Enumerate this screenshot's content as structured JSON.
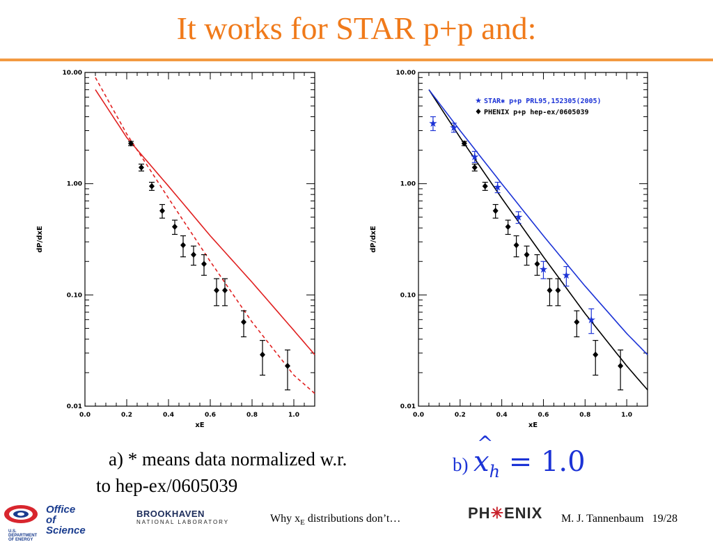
{
  "slide": {
    "title": "It works for STAR p+p and:",
    "caption_a_line1": "a) * means data normalized w.r.",
    "caption_a_line2": "to hep-ex/0605039",
    "caption_b_label": "b)",
    "caption_b_var": "x",
    "caption_b_sub": "h",
    "caption_b_eq": " = 1.0",
    "footer_center_prefix": "Why x",
    "footer_center_sub": "E",
    "footer_center_suffix": " distributions don’t…",
    "footer_author": "M. J. Tannenbaum",
    "footer_page": "19/28",
    "logo_doe_line1": "Office of",
    "logo_doe_line2": "Science",
    "logo_doe_sub": "U.S. DEPARTMENT OF ENERGY",
    "logo_bnl_top": "BROOKHAVEN",
    "logo_bnl_bottom": "NATIONAL LABORATORY",
    "logo_phenix_a": "PH",
    "logo_phenix_star": "✳",
    "logo_phenix_b": "ENIX"
  },
  "colors": {
    "title": "#f07a1a",
    "rule": "#f39a42",
    "red": "#e02020",
    "blue": "#1c33d6",
    "black": "#000000"
  },
  "chart_data": [
    {
      "type": "scatter",
      "xlabel": "x_E",
      "ylabel": "dP/dx_E",
      "xlim": [
        0.0,
        1.1
      ],
      "ylim": [
        0.01,
        10.0
      ],
      "ylog": true,
      "x_ticks": [
        "0.0",
        "0.2",
        "0.4",
        "0.6",
        "0.8",
        "1.0"
      ],
      "y_ticks": [
        "0.01",
        "0.10",
        "1.00",
        "10.00"
      ],
      "series": [
        {
          "marker": "diamond",
          "color": "#000000",
          "x": [
            0.22,
            0.27,
            0.32,
            0.37,
            0.43,
            0.47,
            0.52,
            0.57,
            0.63,
            0.67,
            0.76,
            0.85,
            0.97
          ],
          "y": [
            2.3,
            1.4,
            0.95,
            0.57,
            0.41,
            0.28,
            0.23,
            0.19,
            0.11,
            0.11,
            0.057,
            0.029,
            0.023
          ],
          "err": [
            0.1,
            0.1,
            0.08,
            0.08,
            0.06,
            0.06,
            0.045,
            0.04,
            0.03,
            0.03,
            0.015,
            0.01,
            0.009
          ]
        }
      ],
      "curves": [
        {
          "style": "solid",
          "color": "#e02020",
          "x": [
            0.05,
            0.2,
            0.4,
            0.6,
            0.8,
            1.0,
            1.1
          ],
          "y": [
            7.0,
            2.6,
            0.95,
            0.34,
            0.13,
            0.048,
            0.029
          ]
        },
        {
          "style": "dashed",
          "color": "#e02020",
          "x": [
            0.05,
            0.2,
            0.4,
            0.6,
            0.8,
            1.0,
            1.1
          ],
          "y": [
            9.0,
            2.8,
            0.74,
            0.2,
            0.057,
            0.019,
            0.013
          ]
        }
      ]
    },
    {
      "type": "scatter",
      "xlabel": "x_E",
      "ylabel": "dP/dx_E",
      "xlim": [
        0.0,
        1.1
      ],
      "ylim": [
        0.01,
        10.0
      ],
      "ylog": true,
      "x_ticks": [
        "0.0",
        "0.2",
        "0.4",
        "0.6",
        "0.8",
        "1.0"
      ],
      "y_ticks": [
        "0.01",
        "0.10",
        "1.00",
        "10.00"
      ],
      "legend": [
        "STAR✱ p+p PRL95,152305(2005)",
        "PHENIX p+p hep-ex/0605039"
      ],
      "legend_position": "top-right",
      "series": [
        {
          "name": "STAR✱ p+p PRL95,152305(2005)",
          "marker": "star",
          "color": "#1c33d6",
          "x": [
            0.07,
            0.17,
            0.27,
            0.38,
            0.48,
            0.6,
            0.71,
            0.83
          ],
          "y": [
            3.5,
            3.2,
            1.75,
            0.93,
            0.5,
            0.17,
            0.15,
            0.06
          ],
          "err": [
            0.5,
            0.3,
            0.2,
            0.1,
            0.06,
            0.03,
            0.03,
            0.015
          ]
        },
        {
          "name": "PHENIX p+p hep-ex/0605039",
          "marker": "diamond",
          "color": "#000000",
          "x": [
            0.22,
            0.27,
            0.32,
            0.37,
            0.43,
            0.47,
            0.52,
            0.57,
            0.63,
            0.67,
            0.76,
            0.85,
            0.97
          ],
          "y": [
            2.3,
            1.4,
            0.95,
            0.57,
            0.41,
            0.28,
            0.23,
            0.19,
            0.11,
            0.11,
            0.057,
            0.029,
            0.023
          ],
          "err": [
            0.1,
            0.1,
            0.08,
            0.08,
            0.06,
            0.06,
            0.045,
            0.04,
            0.03,
            0.03,
            0.015,
            0.01,
            0.009
          ]
        }
      ],
      "curves": [
        {
          "style": "solid",
          "color": "#000000",
          "x": [
            0.05,
            0.2,
            0.4,
            0.6,
            0.8,
            1.0,
            1.1
          ],
          "y": [
            7.0,
            2.6,
            0.74,
            0.22,
            0.068,
            0.023,
            0.014
          ]
        },
        {
          "style": "solid",
          "color": "#1c33d6",
          "x": [
            0.05,
            0.2,
            0.4,
            0.6,
            0.8,
            1.0,
            1.1
          ],
          "y": [
            7.0,
            3.0,
            1.0,
            0.34,
            0.12,
            0.045,
            0.029
          ]
        }
      ]
    }
  ]
}
